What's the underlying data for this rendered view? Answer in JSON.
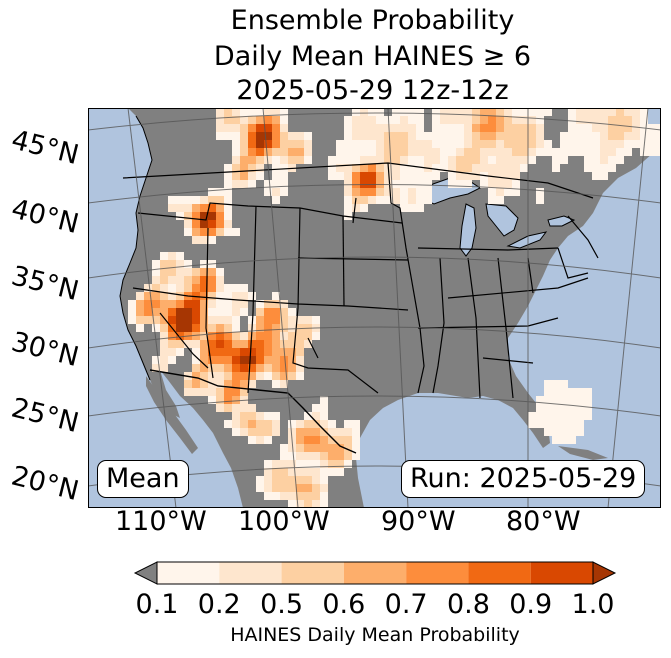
{
  "title": {
    "line1": "Ensemble Probability",
    "line2": "Daily Mean HAINES ≥ 6",
    "line3": "2025-05-29 12z-12z"
  },
  "map": {
    "lat_labels": [
      "45°N",
      "40°N",
      "35°N",
      "30°N",
      "25°N",
      "20°N"
    ],
    "lon_labels": [
      "110°W",
      "100°W",
      "90°W",
      "80°W"
    ],
    "mean_box": "Mean",
    "run_box": "Run: 2025-05-29",
    "colors": {
      "ocean": "#b0c4de",
      "land": "#808080",
      "lakes": "#b0c4de",
      "borders": "#000000",
      "gridlines": "#555555"
    }
  },
  "colorbar": {
    "tick_labels": [
      "0.1",
      "0.2",
      "0.5",
      "0.6",
      "0.7",
      "0.8",
      "0.9",
      "1.0"
    ],
    "bin_colors": [
      "#fff5eb",
      "#fee6ce",
      "#fdd0a2",
      "#fdae6b",
      "#fd8d3c",
      "#f16913",
      "#d94801",
      "#a63603"
    ],
    "under_color": "#808080",
    "label": "HAINES Daily Mean Probability"
  }
}
